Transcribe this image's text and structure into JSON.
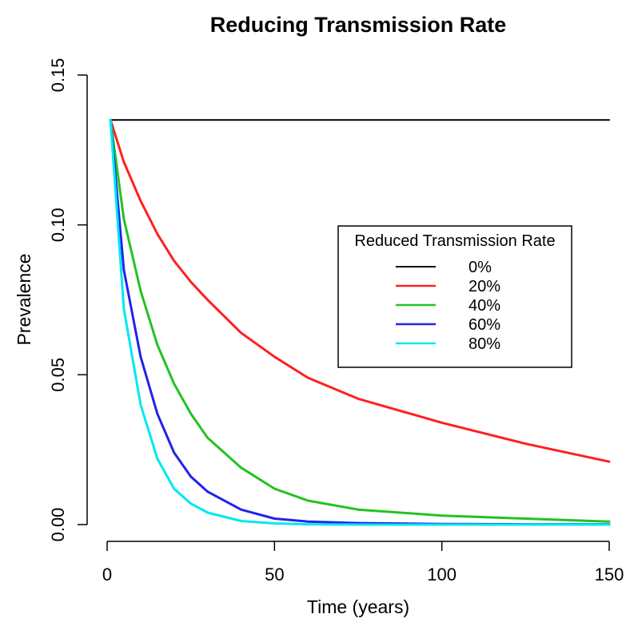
{
  "chart_data": {
    "type": "line",
    "title": "Reducing Transmission Rate",
    "xlabel": "Time (years)",
    "ylabel": "Prevalence",
    "xlim": [
      0,
      150
    ],
    "ylim": [
      0,
      0.15
    ],
    "x_ticks": [
      0,
      50,
      100,
      150
    ],
    "x_tick_labels": [
      "0",
      "50",
      "100",
      "150"
    ],
    "y_ticks": [
      0,
      0.05,
      0.1,
      0.15
    ],
    "y_tick_labels": [
      "0.00",
      "0.05",
      "0.10",
      "0.15"
    ],
    "grid": false,
    "legend": {
      "title": "Reduced Transmission Rate",
      "placement": "center-right"
    },
    "x": [
      1,
      5,
      10,
      15,
      20,
      25,
      30,
      40,
      50,
      60,
      75,
      100,
      125,
      150
    ],
    "series": [
      {
        "name": "0%",
        "color": "#000000",
        "values": [
          0.135,
          0.135,
          0.135,
          0.135,
          0.135,
          0.135,
          0.135,
          0.135,
          0.135,
          0.135,
          0.135,
          0.135,
          0.135,
          0.135
        ]
      },
      {
        "name": "20%",
        "color": "#ff2020",
        "values": [
          0.135,
          0.121,
          0.108,
          0.097,
          0.088,
          0.081,
          0.075,
          0.064,
          0.056,
          0.049,
          0.042,
          0.034,
          0.027,
          0.021
        ]
      },
      {
        "name": "40%",
        "color": "#22c322",
        "values": [
          0.135,
          0.102,
          0.078,
          0.06,
          0.047,
          0.037,
          0.029,
          0.019,
          0.012,
          0.008,
          0.005,
          0.003,
          0.002,
          0.001
        ]
      },
      {
        "name": "60%",
        "color": "#2222ee",
        "values": [
          0.135,
          0.085,
          0.056,
          0.037,
          0.024,
          0.016,
          0.011,
          0.005,
          0.002,
          0.001,
          0.0005,
          0.0002,
          0.0001,
          0.0001
        ]
      },
      {
        "name": "80%",
        "color": "#00e8f0",
        "values": [
          0.135,
          0.072,
          0.04,
          0.022,
          0.012,
          0.007,
          0.004,
          0.0012,
          0.0004,
          0.0001,
          0.0,
          0.0,
          0.0,
          0.0
        ]
      }
    ]
  }
}
